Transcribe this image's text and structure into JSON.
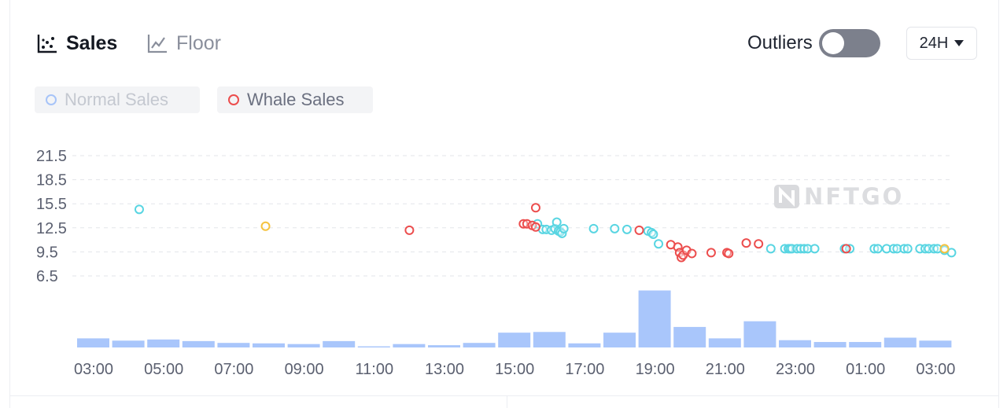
{
  "tabs": {
    "sales_label": "Sales",
    "floor_label": "Floor",
    "sales_icon": "scatter-chart-icon",
    "floor_icon": "line-chart-icon"
  },
  "controls": {
    "outliers_label": "Outliers",
    "outliers_on": false,
    "range_label": "24H"
  },
  "watermark": "NFTGO",
  "colors": {
    "normal": "#58d5e2",
    "whale": "#ec4d4d",
    "highlight": "#f5c23e",
    "bar": "#a9c6fb",
    "legend_normal": "#a7c4f8"
  },
  "chart_data": {
    "type": "scatter",
    "legend": [
      {
        "name": "Normal Sales",
        "active": false
      },
      {
        "name": "Whale Sales",
        "active": true
      }
    ],
    "legend_placement": "top-left",
    "grid": true,
    "y_ticks": [
      "21.5",
      "18.5",
      "15.5",
      "12.5",
      "9.5",
      "6.5"
    ],
    "ylim": [
      6.5,
      21.5
    ],
    "x_ticks": [
      "03:00",
      "05:00",
      "07:00",
      "09:00",
      "11:00",
      "13:00",
      "15:00",
      "17:00",
      "19:00",
      "21:00",
      "23:00",
      "01:00",
      "03:00"
    ],
    "xlim_hours": [
      3,
      27.5
    ],
    "series": [
      {
        "name": "Normal Sales",
        "points": [
          [
            4.3,
            14.8
          ],
          [
            15.65,
            13.0
          ],
          [
            15.8,
            12.3
          ],
          [
            15.9,
            12.3
          ],
          [
            16.05,
            12.2
          ],
          [
            16.15,
            12.4
          ],
          [
            16.2,
            13.2
          ],
          [
            16.25,
            12.1
          ],
          [
            16.3,
            12.0
          ],
          [
            16.35,
            11.8
          ],
          [
            16.4,
            12.4
          ],
          [
            17.25,
            12.4
          ],
          [
            17.85,
            12.4
          ],
          [
            18.2,
            12.3
          ],
          [
            18.8,
            12.1
          ],
          [
            18.9,
            11.9
          ],
          [
            18.95,
            11.7
          ],
          [
            19.1,
            10.5
          ],
          [
            22.3,
            9.9
          ],
          [
            22.7,
            9.9
          ],
          [
            22.8,
            9.9
          ],
          [
            22.85,
            9.9
          ],
          [
            22.9,
            9.9
          ],
          [
            23.05,
            9.9
          ],
          [
            23.15,
            9.9
          ],
          [
            23.25,
            9.9
          ],
          [
            23.35,
            9.9
          ],
          [
            23.55,
            9.9
          ],
          [
            24.4,
            9.9
          ],
          [
            24.55,
            9.9
          ],
          [
            25.25,
            9.9
          ],
          [
            25.35,
            9.9
          ],
          [
            25.6,
            9.9
          ],
          [
            25.8,
            9.9
          ],
          [
            25.9,
            9.9
          ],
          [
            26.1,
            9.9
          ],
          [
            26.2,
            9.9
          ],
          [
            26.55,
            9.9
          ],
          [
            26.7,
            9.9
          ],
          [
            26.8,
            9.9
          ],
          [
            26.95,
            9.9
          ],
          [
            27.05,
            9.9
          ],
          [
            27.25,
            9.7
          ],
          [
            27.45,
            9.4
          ]
        ]
      },
      {
        "name": "Whale Sales",
        "points": [
          [
            12.0,
            12.2
          ],
          [
            15.25,
            13.0
          ],
          [
            15.35,
            13.0
          ],
          [
            15.5,
            12.8
          ],
          [
            15.6,
            12.6
          ],
          [
            15.6,
            15.0
          ],
          [
            18.55,
            12.2
          ],
          [
            19.45,
            10.4
          ],
          [
            19.65,
            10.1
          ],
          [
            19.7,
            9.4
          ],
          [
            19.75,
            8.8
          ],
          [
            19.8,
            9.1
          ],
          [
            19.9,
            9.7
          ],
          [
            20.05,
            9.3
          ],
          [
            20.6,
            9.4
          ],
          [
            21.05,
            9.4
          ],
          [
            21.1,
            9.3
          ],
          [
            21.6,
            10.6
          ],
          [
            21.95,
            10.5
          ],
          [
            24.45,
            9.9
          ]
        ]
      },
      {
        "name": "",
        "points": [
          [
            7.9,
            12.7
          ],
          [
            27.25,
            9.9
          ]
        ]
      }
    ],
    "volume_bars": [
      4,
      3,
      3.5,
      2.8,
      2,
      1.8,
      1.5,
      2.8,
      0.5,
      1.5,
      1,
      2,
      6.5,
      6.8,
      1.8,
      6.5,
      25,
      9,
      4,
      11.5,
      3.2,
      2.4,
      2.4,
      4.3,
      3
    ]
  }
}
